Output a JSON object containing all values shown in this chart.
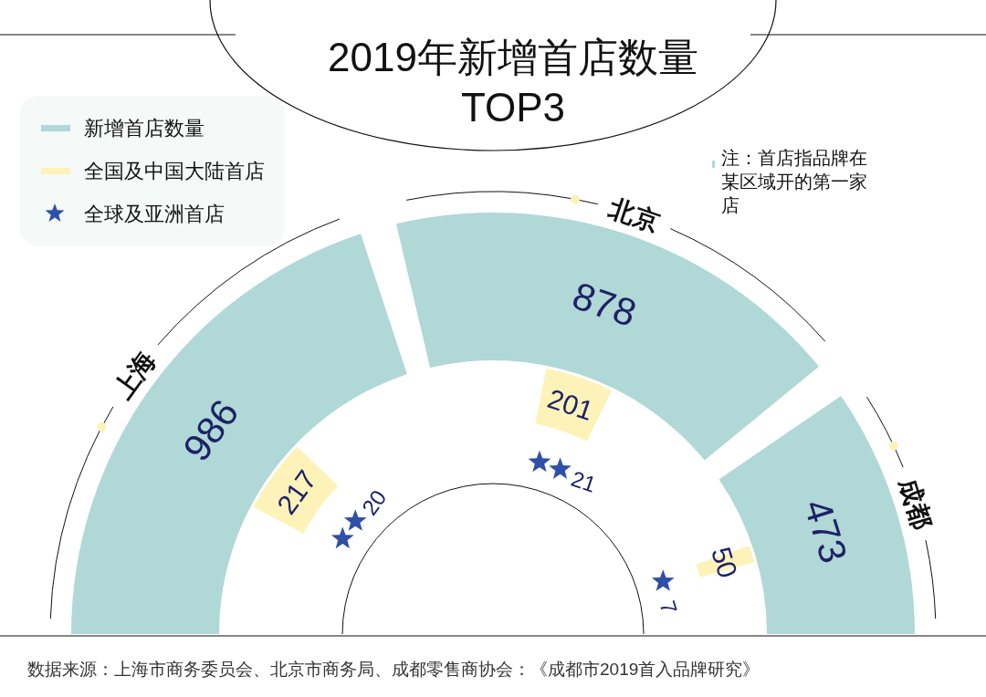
{
  "chart_data": {
    "type": "other",
    "title": "2019年新增首店数量\nTOP3",
    "categories": [
      "上海",
      "北京",
      "成都"
    ],
    "series": [
      {
        "name": "新增首店数量",
        "color": "#b0d8d6",
        "values": [
          986,
          878,
          473
        ]
      },
      {
        "name": "全国及中国大陆首店",
        "color": "#fdf3b8",
        "values": [
          217,
          201,
          50
        ]
      },
      {
        "name": "全球及亚洲首店",
        "color": "#2f4fa8",
        "values": [
          20,
          21,
          7
        ]
      }
    ],
    "data_labels": true,
    "legend": "top left",
    "annotations": [
      "注：首店指品牌在某区域开的第一家店",
      "数据来源：上海市商务委员会、北京市商务局、成都零售商协会：《成都市2019首入品牌研究》"
    ]
  }
}
